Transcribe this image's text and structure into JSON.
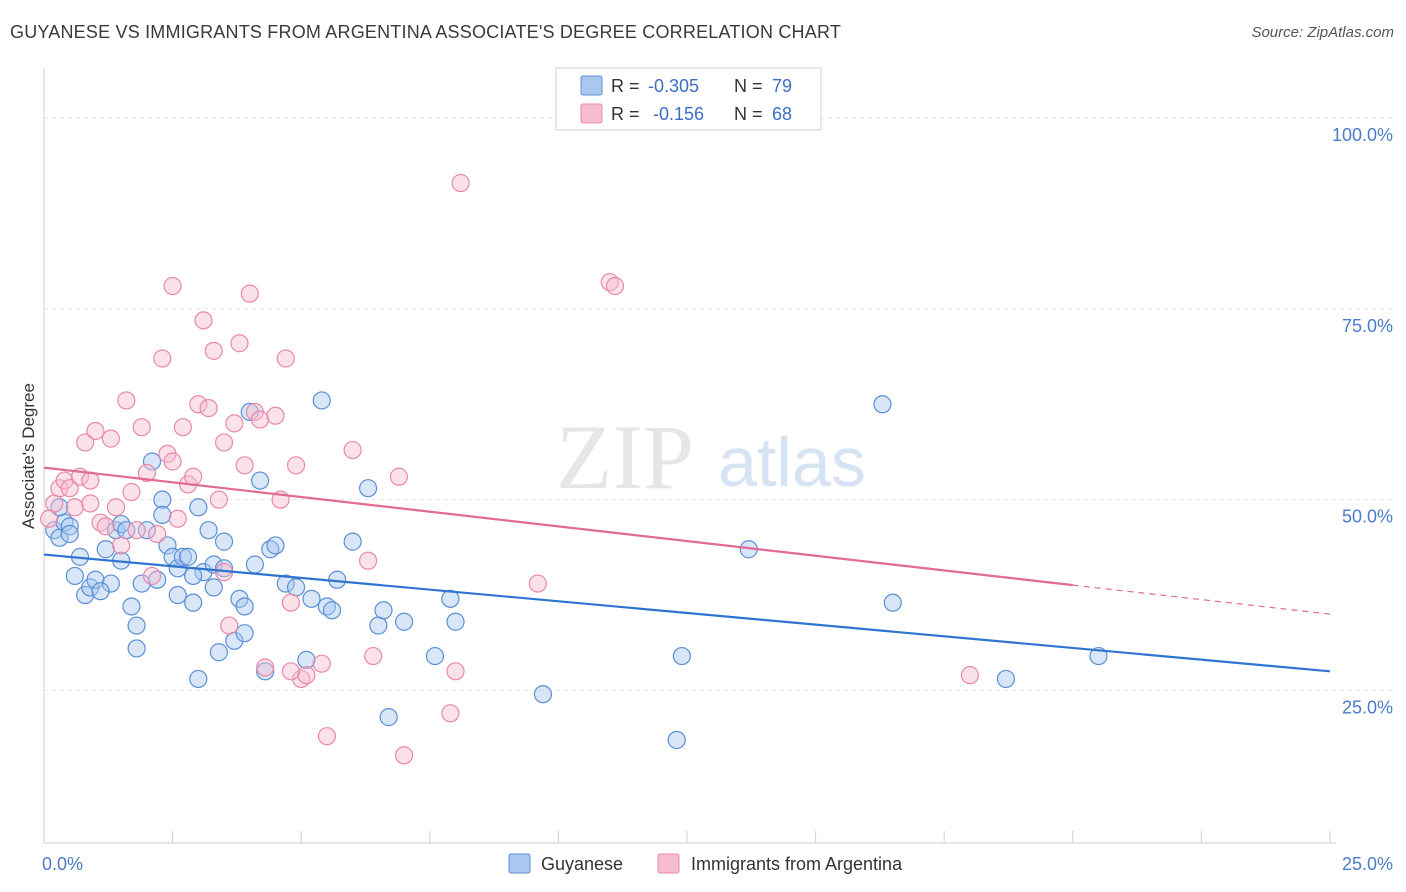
{
  "title": "GUYANESE VS IMMIGRANTS FROM ARGENTINA ASSOCIATE'S DEGREE CORRELATION CHART",
  "source": "Source: ZipAtlas.com",
  "watermark": {
    "part1": "ZIP",
    "part2": "atlas"
  },
  "colors": {
    "blue_fill": "#a9c8ef",
    "blue_stroke": "#5b8fd6",
    "blue_line": "#2f74d0",
    "pink_fill": "#f6bdd0",
    "pink_stroke": "#e889a8",
    "pink_line": "#e06b93"
  },
  "chart_data": {
    "type": "scatter",
    "xlabel": "",
    "ylabel": "Associate's Degree",
    "xlim": [
      0,
      25
    ],
    "ylim": [
      5,
      105
    ],
    "x_tick_labels": [
      {
        "value": 0,
        "label": "0.0%"
      },
      {
        "value": 25,
        "label": "25.0%"
      }
    ],
    "y_tick_labels": [
      {
        "value": 25,
        "label": "25.0%"
      },
      {
        "value": 50,
        "label": "50.0%"
      },
      {
        "value": 75,
        "label": "75.0%"
      },
      {
        "value": 100,
        "label": "100.0%"
      }
    ],
    "grid": true,
    "legend_position": "bottom-center",
    "stats": [
      {
        "r_label": "R =",
        "r_value": "-0.305",
        "n_label": "N =",
        "n_value": "79"
      },
      {
        "r_label": "R =",
        "r_value": "-0.156",
        "n_label": "N =",
        "n_value": "68"
      }
    ],
    "series": [
      {
        "name": "Guyanese",
        "trend": {
          "x": [
            0,
            25
          ],
          "y": [
            42.8,
            27.5
          ]
        },
        "points": [
          [
            0.2,
            46
          ],
          [
            0.3,
            45
          ],
          [
            0.4,
            47
          ],
          [
            0.5,
            46.5
          ],
          [
            0.6,
            40
          ],
          [
            0.7,
            42.5
          ],
          [
            0.8,
            37.5
          ],
          [
            0.9,
            38.5
          ],
          [
            1.0,
            39.5
          ],
          [
            1.2,
            43.5
          ],
          [
            1.3,
            39
          ],
          [
            1.4,
            46
          ],
          [
            1.5,
            46.8
          ],
          [
            1.6,
            46
          ],
          [
            1.7,
            36
          ],
          [
            1.8,
            33.5
          ],
          [
            1.8,
            30.5
          ],
          [
            1.9,
            39
          ],
          [
            2.0,
            46
          ],
          [
            2.1,
            55
          ],
          [
            2.2,
            39.5
          ],
          [
            2.3,
            50
          ],
          [
            2.3,
            48
          ],
          [
            2.4,
            44
          ],
          [
            2.5,
            42.5
          ],
          [
            2.6,
            37.5
          ],
          [
            2.6,
            41
          ],
          [
            2.7,
            42.5
          ],
          [
            2.8,
            42.5
          ],
          [
            2.9,
            36.5
          ],
          [
            3.0,
            49
          ],
          [
            3.0,
            26.5
          ],
          [
            3.1,
            40.5
          ],
          [
            3.2,
            46
          ],
          [
            3.3,
            38.5
          ],
          [
            3.3,
            41.5
          ],
          [
            3.4,
            30
          ],
          [
            3.5,
            41
          ],
          [
            3.5,
            44.5
          ],
          [
            3.7,
            31.5
          ],
          [
            3.8,
            37
          ],
          [
            3.9,
            32.5
          ],
          [
            3.9,
            36
          ],
          [
            4.0,
            61.5
          ],
          [
            4.1,
            41.5
          ],
          [
            4.2,
            52.5
          ],
          [
            4.3,
            27.5
          ],
          [
            4.4,
            43.5
          ],
          [
            4.5,
            44
          ],
          [
            4.7,
            39
          ],
          [
            4.9,
            38.5
          ],
          [
            5.1,
            29
          ],
          [
            5.2,
            37
          ],
          [
            5.4,
            63
          ],
          [
            5.5,
            36
          ],
          [
            5.6,
            35.5
          ],
          [
            5.7,
            39.5
          ],
          [
            6.0,
            44.5
          ],
          [
            6.3,
            51.5
          ],
          [
            6.5,
            33.5
          ],
          [
            6.6,
            35.5
          ],
          [
            6.7,
            21.5
          ],
          [
            7.0,
            34
          ],
          [
            7.6,
            29.5
          ],
          [
            7.9,
            37
          ],
          [
            8.0,
            34
          ],
          [
            9.7,
            24.5
          ],
          [
            12.3,
            18.5
          ],
          [
            12.4,
            29.5
          ],
          [
            13.7,
            43.5
          ],
          [
            16.3,
            62.5
          ],
          [
            16.5,
            36.5
          ],
          [
            18.7,
            26.5
          ],
          [
            20.5,
            29.5
          ],
          [
            0.3,
            49
          ],
          [
            0.5,
            45.5
          ],
          [
            1.1,
            38
          ],
          [
            1.5,
            42
          ],
          [
            2.9,
            40
          ]
        ]
      },
      {
        "name": "Immigrants from Argentina",
        "trend": {
          "x": [
            0,
            20
          ],
          "y": [
            54.2,
            38.8
          ]
        },
        "trend_dashed": {
          "x": [
            20,
            25
          ],
          "y": [
            38.8,
            35.0
          ]
        },
        "points": [
          [
            0.2,
            49.5
          ],
          [
            0.3,
            51.5
          ],
          [
            0.4,
            52.5
          ],
          [
            0.5,
            51.5
          ],
          [
            0.6,
            49
          ],
          [
            0.7,
            53
          ],
          [
            0.8,
            57.5
          ],
          [
            0.9,
            49.5
          ],
          [
            1.0,
            59
          ],
          [
            1.1,
            47
          ],
          [
            1.2,
            46.5
          ],
          [
            1.3,
            58
          ],
          [
            1.4,
            49
          ],
          [
            1.5,
            44
          ],
          [
            1.6,
            63
          ],
          [
            1.7,
            51
          ],
          [
            1.8,
            46
          ],
          [
            1.9,
            59.5
          ],
          [
            2.0,
            53.5
          ],
          [
            2.2,
            45.5
          ],
          [
            2.3,
            68.5
          ],
          [
            2.4,
            56
          ],
          [
            2.5,
            55
          ],
          [
            2.5,
            78
          ],
          [
            2.6,
            47.5
          ],
          [
            2.7,
            59.5
          ],
          [
            2.8,
            52
          ],
          [
            2.9,
            53
          ],
          [
            3.0,
            62.5
          ],
          [
            3.1,
            73.5
          ],
          [
            3.2,
            62
          ],
          [
            3.3,
            69.5
          ],
          [
            3.4,
            50
          ],
          [
            3.5,
            57.5
          ],
          [
            3.5,
            40.5
          ],
          [
            3.6,
            33.5
          ],
          [
            3.7,
            60
          ],
          [
            3.8,
            70.5
          ],
          [
            3.9,
            54.5
          ],
          [
            4.0,
            77
          ],
          [
            4.1,
            61.5
          ],
          [
            4.2,
            60.5
          ],
          [
            4.3,
            28
          ],
          [
            4.5,
            61
          ],
          [
            4.6,
            50
          ],
          [
            4.7,
            68.5
          ],
          [
            4.8,
            36.5
          ],
          [
            4.9,
            54.5
          ],
          [
            5.0,
            26.5
          ],
          [
            5.1,
            27
          ],
          [
            5.4,
            28.5
          ],
          [
            5.5,
            19
          ],
          [
            6.0,
            56.5
          ],
          [
            6.3,
            42
          ],
          [
            6.4,
            29.5
          ],
          [
            6.9,
            53
          ],
          [
            7.0,
            16.5
          ],
          [
            7.9,
            22
          ],
          [
            8.0,
            27.5
          ],
          [
            8.1,
            91.5
          ],
          [
            9.6,
            39
          ],
          [
            11.0,
            78.5
          ],
          [
            11.1,
            78
          ],
          [
            18.0,
            27
          ],
          [
            0.1,
            47.5
          ],
          [
            0.9,
            52.5
          ],
          [
            2.1,
            40
          ],
          [
            4.8,
            27.5
          ]
        ]
      }
    ]
  }
}
